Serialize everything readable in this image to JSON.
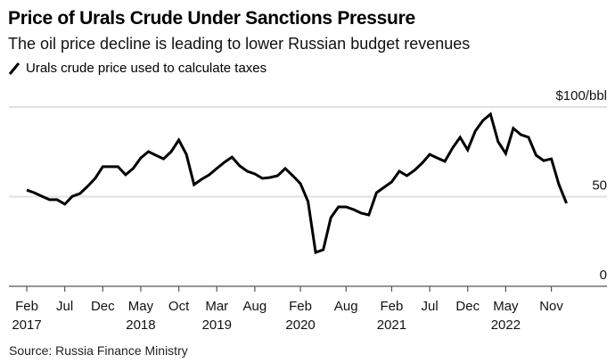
{
  "header": {
    "title": "Price of Urals Crude Under Sanctions Pressure",
    "subtitle": "The oil price decline is leading to lower Russian budget revenues",
    "legend_label": "Urals crude price used to calculate taxes"
  },
  "footer": {
    "source": "Source: Russia Finance Ministry"
  },
  "colors": {
    "line": "#000000",
    "grid": "#e0e0e0",
    "axis": "#555555"
  },
  "chart_data": {
    "type": "line",
    "title": "Price of Urals Crude Under Sanctions Pressure",
    "subtitle": "The oil price decline is leading to lower Russian budget revenues",
    "xlabel": "",
    "ylabel": "$/bbl",
    "ylim": [
      0,
      100
    ],
    "grid": true,
    "legend": "top-left",
    "y_ticks": [
      {
        "value": 100,
        "label": "$100/bbl"
      },
      {
        "value": 50,
        "label": "50"
      },
      {
        "value": 0,
        "label": "0"
      }
    ],
    "x_ticks": [
      {
        "month_index": 0,
        "label": "Feb",
        "year": "2017"
      },
      {
        "month_index": 5,
        "label": "Jul",
        "year": ""
      },
      {
        "month_index": 10,
        "label": "Dec",
        "year": ""
      },
      {
        "month_index": 15,
        "label": "May",
        "year": "2018"
      },
      {
        "month_index": 20,
        "label": "Oct",
        "year": ""
      },
      {
        "month_index": 25,
        "label": "Mar",
        "year": "2019"
      },
      {
        "month_index": 30,
        "label": "Aug",
        "year": ""
      },
      {
        "month_index": 36,
        "label": "Feb",
        "year": "2020"
      },
      {
        "month_index": 42,
        "label": "Aug",
        "year": ""
      },
      {
        "month_index": 48,
        "label": "Feb",
        "year": "2021"
      },
      {
        "month_index": 53,
        "label": "Jul",
        "year": ""
      },
      {
        "month_index": 58,
        "label": "Dec",
        "year": ""
      },
      {
        "month_index": 63,
        "label": "May",
        "year": "2022"
      },
      {
        "month_index": 69,
        "label": "Nov",
        "year": ""
      }
    ],
    "x_start": "Feb 2017",
    "x_end_month_index": 77,
    "series": [
      {
        "name": "Urals crude price used to calculate taxes",
        "unit": "$/bbl",
        "x_month_index": [
          0,
          1,
          2,
          3,
          4,
          5,
          6,
          7,
          8,
          9,
          10,
          11,
          12,
          13,
          14,
          15,
          16,
          17,
          18,
          19,
          20,
          21,
          22,
          23,
          24,
          25,
          26,
          27,
          28,
          29,
          30,
          31,
          32,
          33,
          34,
          35,
          36,
          37,
          38,
          39,
          40,
          41,
          42,
          43,
          44,
          45,
          46,
          47,
          48,
          49,
          50,
          51,
          52,
          53,
          54,
          55,
          56,
          57,
          58,
          59,
          60,
          61,
          62,
          63,
          64,
          65,
          66,
          67,
          68,
          69,
          70,
          71
        ],
        "values": [
          53.7,
          52.2,
          50.2,
          48.3,
          48.3,
          45.8,
          50.2,
          51.7,
          55.7,
          60.2,
          66.7,
          66.7,
          66.7,
          62.2,
          65.7,
          71.6,
          75.1,
          73.1,
          71.1,
          75.1,
          81.6,
          73.6,
          56.7,
          59.7,
          62.2,
          65.7,
          69.2,
          72.1,
          67.2,
          64.2,
          62.7,
          60.2,
          60.7,
          61.7,
          65.7,
          61.7,
          57.2,
          47.3,
          18.9,
          20.4,
          38.3,
          44.3,
          44.3,
          42.8,
          40.8,
          39.8,
          52.2,
          55.2,
          58.2,
          64.2,
          61.7,
          64.7,
          68.7,
          73.6,
          71.6,
          69.7,
          77.1,
          83.1,
          76.1,
          86.6,
          92.5,
          96.0,
          80.6,
          74.1,
          88.1,
          84.6,
          83.1,
          73.1,
          70.1,
          71.1,
          56.7,
          46.3
        ]
      }
    ]
  }
}
